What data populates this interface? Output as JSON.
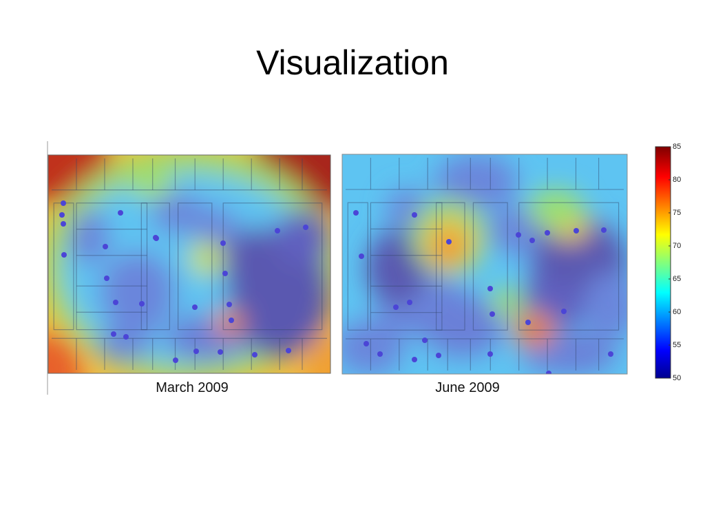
{
  "slide": {
    "title": "Visualization",
    "panels": [
      {
        "caption": "March 2009"
      },
      {
        "caption": "June 2009"
      }
    ],
    "colorbar": {
      "range": [
        50,
        85
      ],
      "ticks": [
        50,
        55,
        60,
        65,
        70,
        75,
        80,
        85
      ]
    }
  }
}
